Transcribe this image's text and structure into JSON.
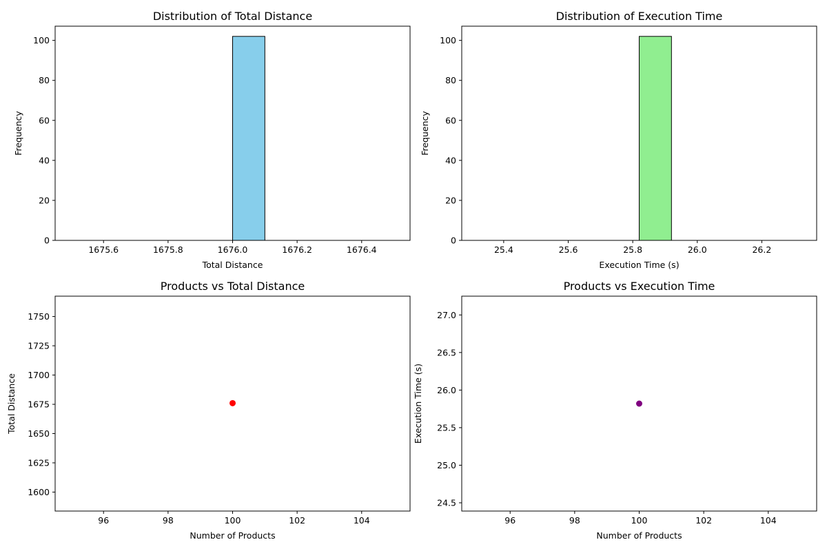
{
  "chart_data": [
    {
      "type": "bar",
      "title": "Distribution of Total Distance",
      "xlabel": "Total Distance",
      "ylabel": "Frequency",
      "xlim": [
        1675.45,
        1676.55
      ],
      "ylim": [
        0,
        107.1
      ],
      "xticks": [
        1675.6,
        1675.8,
        1676.0,
        1676.2,
        1676.4
      ],
      "xtick_labels": [
        "1675.6",
        "1675.8",
        "1676.0",
        "1676.2",
        "1676.4"
      ],
      "yticks": [
        0,
        20,
        40,
        60,
        80,
        100
      ],
      "ytick_labels": [
        "0",
        "20",
        "40",
        "60",
        "80",
        "100"
      ],
      "bins": [
        {
          "x0": 1675.5,
          "x1": 1675.6,
          "count": 0
        },
        {
          "x0": 1675.6,
          "x1": 1675.7,
          "count": 0
        },
        {
          "x0": 1675.7,
          "x1": 1675.8,
          "count": 0
        },
        {
          "x0": 1675.8,
          "x1": 1675.9,
          "count": 0
        },
        {
          "x0": 1675.9,
          "x1": 1676.0,
          "count": 0
        },
        {
          "x0": 1676.0,
          "x1": 1676.1,
          "count": 102
        },
        {
          "x0": 1676.1,
          "x1": 1676.2,
          "count": 0
        },
        {
          "x0": 1676.2,
          "x1": 1676.3,
          "count": 0
        },
        {
          "x0": 1676.3,
          "x1": 1676.4,
          "count": 0
        },
        {
          "x0": 1676.4,
          "x1": 1676.5,
          "count": 0
        }
      ],
      "color": "#87ceeb",
      "edgecolor": "#000000",
      "grid": false
    },
    {
      "type": "bar",
      "title": "Distribution of Execution Time",
      "xlabel": "Execution Time (s)",
      "ylabel": "Frequency",
      "xlim": [
        25.27,
        26.37
      ],
      "ylim": [
        0,
        107.1
      ],
      "xticks": [
        25.4,
        25.6,
        25.8,
        26.0,
        26.2
      ],
      "xtick_labels": [
        "25.4",
        "25.6",
        "25.8",
        "26.0",
        "26.2"
      ],
      "yticks": [
        0,
        20,
        40,
        60,
        80,
        100
      ],
      "ytick_labels": [
        "0",
        "20",
        "40",
        "60",
        "80",
        "100"
      ],
      "bins": [
        {
          "x0": 25.32,
          "x1": 25.42,
          "count": 0
        },
        {
          "x0": 25.42,
          "x1": 25.52,
          "count": 0
        },
        {
          "x0": 25.52,
          "x1": 25.62,
          "count": 0
        },
        {
          "x0": 25.62,
          "x1": 25.72,
          "count": 0
        },
        {
          "x0": 25.72,
          "x1": 25.82,
          "count": 0
        },
        {
          "x0": 25.82,
          "x1": 25.92,
          "count": 102
        },
        {
          "x0": 25.92,
          "x1": 26.02,
          "count": 0
        },
        {
          "x0": 26.02,
          "x1": 26.12,
          "count": 0
        },
        {
          "x0": 26.12,
          "x1": 26.22,
          "count": 0
        },
        {
          "x0": 26.22,
          "x1": 26.32,
          "count": 0
        }
      ],
      "color": "#90ee90",
      "edgecolor": "#000000",
      "grid": false
    },
    {
      "type": "scatter",
      "title": "Products vs Total Distance",
      "xlabel": "Number of Products",
      "ylabel": "Total Distance",
      "xlim": [
        94.5,
        105.5
      ],
      "ylim": [
        1583.8,
        1767.4
      ],
      "xticks": [
        96,
        98,
        100,
        102,
        104
      ],
      "xtick_labels": [
        "96",
        "98",
        "100",
        "102",
        "104"
      ],
      "yticks": [
        1600,
        1625,
        1650,
        1675,
        1700,
        1725,
        1750
      ],
      "ytick_labels": [
        "1600",
        "1625",
        "1650",
        "1675",
        "1700",
        "1725",
        "1750"
      ],
      "points": [
        {
          "x": 100,
          "y": 1676
        }
      ],
      "color": "#ff0000",
      "grid": false
    },
    {
      "type": "scatter",
      "title": "Products vs Execution Time",
      "xlabel": "Number of Products",
      "ylabel": "Execution Time (s)",
      "xlim": [
        94.5,
        105.5
      ],
      "ylim": [
        24.39,
        27.25
      ],
      "xticks": [
        96,
        98,
        100,
        102,
        104
      ],
      "xtick_labels": [
        "96",
        "98",
        "100",
        "102",
        "104"
      ],
      "yticks": [
        24.5,
        25.0,
        25.5,
        26.0,
        26.5,
        27.0
      ],
      "ytick_labels": [
        "24.5",
        "25.0",
        "25.5",
        "26.0",
        "26.5",
        "27.0"
      ],
      "points": [
        {
          "x": 100,
          "y": 25.82
        }
      ],
      "color": "#800080",
      "grid": false
    }
  ]
}
